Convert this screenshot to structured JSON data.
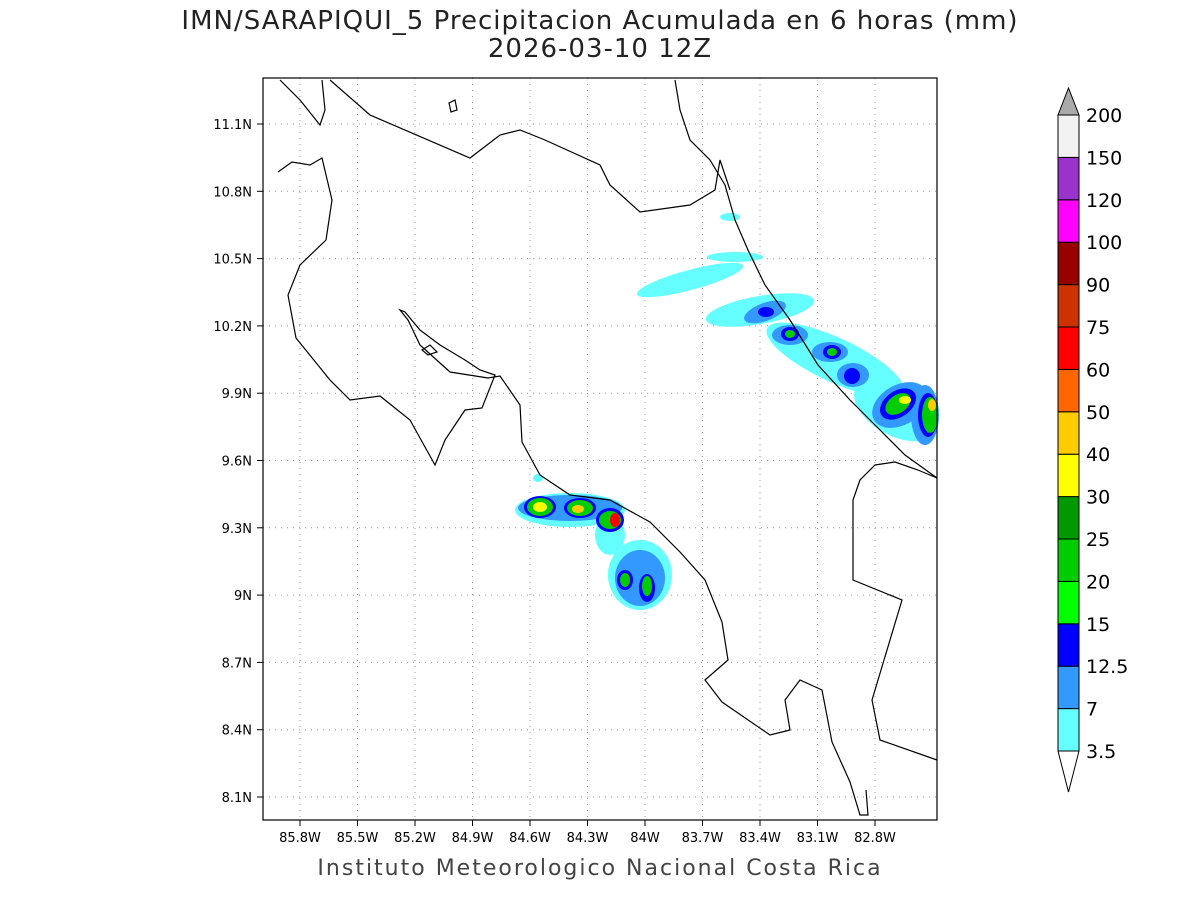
{
  "title": {
    "line1": "IMN/SARAPIQUI_5 Precipitacion Acumulada en 6 horas (mm)",
    "line2": "2026-03-10 12Z"
  },
  "footer": "Instituto Meteorologico Nacional Costa Rica",
  "map": {
    "lon_labels": [
      "85.8W",
      "85.5W",
      "85.2W",
      "84.9W",
      "84.6W",
      "84.3W",
      "84W",
      "83.7W",
      "83.4W",
      "83.1W",
      "82.8W"
    ],
    "lat_labels": [
      "11.1N",
      "10.8N",
      "10.5N",
      "10.2N",
      "9.9N",
      "9.6N",
      "9.3N",
      "9N",
      "8.7N",
      "8.4N",
      "8.1N"
    ]
  },
  "colorbar": {
    "levels": [
      "3.5",
      "7",
      "12.5",
      "15",
      "20",
      "25",
      "30",
      "40",
      "50",
      "60",
      "75",
      "90",
      "100",
      "120",
      "150",
      "200"
    ],
    "colors": [
      "#66ffff",
      "#3399ff",
      "#0000ff",
      "#00ff00",
      "#00cc00",
      "#009900",
      "#ffff00",
      "#ffcc00",
      "#ff6600",
      "#ff0000",
      "#cc3300",
      "#990000",
      "#ff00ff",
      "#9933cc",
      "#f2f2f2"
    ],
    "over_color": "#aaaaaa",
    "under_color": "#ffffff"
  }
}
